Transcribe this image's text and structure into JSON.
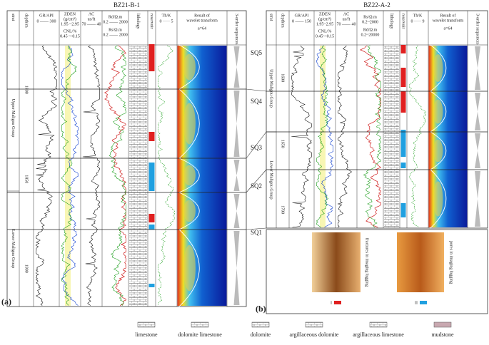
{
  "panels": [
    {
      "tag": "(a)",
      "title": "BZ21-B-1",
      "headers": {
        "strat": "strat",
        "depth": "depth/m",
        "gr": "GR/API",
        "gr_range": "0 —— 300",
        "zden": "ZDEN",
        "zden_unit": "(g/cm³)",
        "zden_range": "1.95 ~2.95",
        "cnl": "CNL/%",
        "cnl_range": "0.45 ~-0.15",
        "ac": "AC",
        "ac_unit": "us/ft",
        "ac_range": "70 —— 40",
        "r1": "Rd/Ω.m",
        "r1_range": "0.2 —— 2000",
        "r2": "Rs/Ω.m",
        "r2_range": "0.2 —— 2000",
        "lithology": "lithology",
        "reservoir": "reservoir",
        "thk": "Th/K",
        "thk_range": "0 ····· 5",
        "wavelet": "Result of",
        "wavelet2": "wavelet transform",
        "wavelet_scale": "a=64",
        "seq": "3-order sequences"
      },
      "depths": [
        "1800",
        "1850",
        "1900"
      ],
      "groups": [
        "Upper Maligou Group",
        "Lower Maligou Group"
      ]
    },
    {
      "tag": "(b)",
      "title": "BZ22-A-2",
      "headers": {
        "strat": "strat",
        "depth": "depth/m",
        "gr": "GR/API",
        "gr_range": "0 —— 150",
        "zden": "ZDEN",
        "zden_unit": "(g/cm³)",
        "zden_range": "1.95~2.95",
        "cnl": "CNL/%",
        "cnl_range": "0.45~-0.15",
        "ac": "AC",
        "ac_unit": "us/ft",
        "ac_range": "70 —— 40",
        "r1": "Rs/Ω.m",
        "r1_range": "0.2~2000",
        "r2": "Rd/Ω.m",
        "r2_range": "0.2~20000",
        "lithology": "lithology",
        "reservoir": "reservoir",
        "thk": "Th/K",
        "thk_range": "0 ····· 9",
        "wavelet": "Result of",
        "wavelet2": "wavelet transform",
        "wavelet_scale": "a=64",
        "seq": "3-order sequences"
      },
      "depths": [
        "1600",
        "1650",
        "1700"
      ],
      "groups": [
        "Upper Maligou Group",
        "Lower Maligou Group"
      ]
    }
  ],
  "sequences": [
    "SQ5",
    "SQ4",
    "SQ3",
    "SQ2",
    "SQ1"
  ],
  "images": [
    {
      "caption": "fractures in imaging logging",
      "label": "I"
    },
    {
      "caption": "pores in imaging logging",
      "label": "II"
    }
  ],
  "legend": [
    "limestone",
    "dolomite limestone",
    "dolomite",
    "argillaceous dolomite",
    "argillaceous limestone",
    "mudstone"
  ]
}
